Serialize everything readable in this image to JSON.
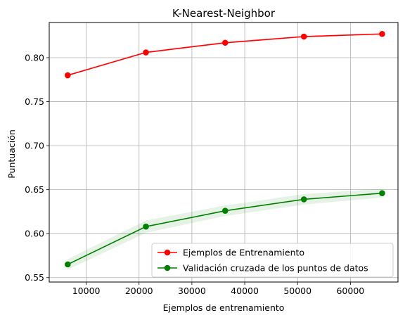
{
  "chart_data": {
    "type": "line",
    "title": "K-Nearest-Neighbor",
    "xlabel": "Ejemplos de entrenamiento",
    "ylabel": "Puntuación",
    "xlim": [
      3000,
      69000
    ],
    "ylim": [
      0.545,
      0.84
    ],
    "xticks": [
      10000,
      20000,
      30000,
      40000,
      50000,
      60000
    ],
    "yticks": [
      0.55,
      0.6,
      0.65,
      0.7,
      0.75,
      0.8
    ],
    "ytick_labels": [
      "0.55",
      "0.60",
      "0.65",
      "0.70",
      "0.75",
      "0.80"
    ],
    "grid": true,
    "legend_position": "lower-right",
    "x": [
      6500,
      21300,
      36300,
      51200,
      66000
    ],
    "series": [
      {
        "name": "Ejemplos de Entrenamiento",
        "color": "#ff0000",
        "values": [
          0.78,
          0.806,
          0.817,
          0.824,
          0.827
        ],
        "band": [
          0.001,
          0.001,
          0.001,
          0.001,
          0.001
        ]
      },
      {
        "name": "Validación cruzada de los puntos de datos",
        "color": "#008000",
        "band_color": "#008000",
        "values": [
          0.565,
          0.608,
          0.626,
          0.639,
          0.646
        ],
        "band": [
          0.006,
          0.007,
          0.006,
          0.006,
          0.005
        ]
      }
    ]
  }
}
